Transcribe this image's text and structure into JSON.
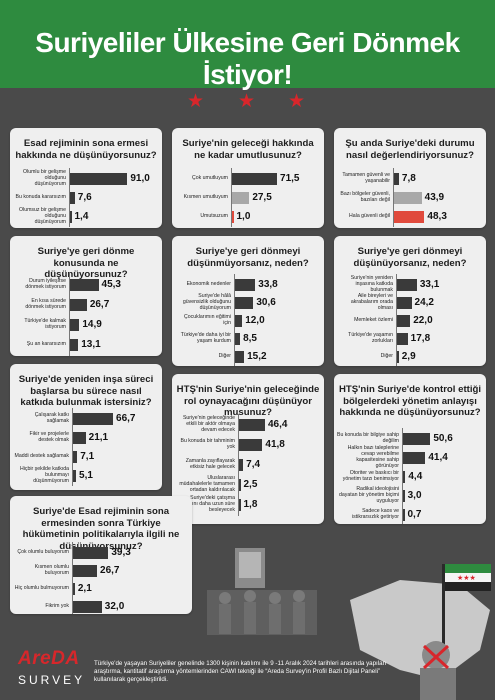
{
  "header": {
    "title": "Suriyeliler Ülkesine Geri Dönmek İstiyor!"
  },
  "colors": {
    "header_bg": "#2e8b3f",
    "star": "#d8262b",
    "bar_dark": "#3a3a3a",
    "bar_gray": "#a8a8a8",
    "bar_red": "#e04a3c",
    "bg": "#4a4a4a"
  },
  "icons": {
    "stars": [
      "star-icon",
      "star-icon",
      "star-icon"
    ],
    "logo": "areda-logo",
    "map": "syria-map",
    "flag": "syrian-opposition-flag"
  },
  "footer": {
    "logo_word": "AreDA",
    "logo_sub": "SURVEY",
    "text": "Türkiye'de yaşayan Suriyeliler genelinde 1300 kişinin katılımı ile 9 -11 Aralık 2024 tarihleri arasında yapılan araştırma, kantitatif araştırma yöntemlerinden CAWI tekniği ile “Areda Survey'in Profil Bazlı Dijital Paneli” kullanılarak gerçekleştirildi."
  },
  "chart_data": [
    {
      "type": "bar",
      "title": "Esad rejiminin sona ermesi hakkında ne düşünüyorsunuz?",
      "categories": [
        "Olumlu bir gelişme olduğunu düşünüyorum",
        "Bu konuda kararsızım",
        "Olumsuz bir gelişme olduğunu düşünüyorum"
      ],
      "values": [
        91.0,
        7.6,
        1.4
      ],
      "value_labels": [
        "91,0",
        "7,6",
        "1,4"
      ],
      "colors": [
        "#3a3a3a",
        "#3a3a3a",
        "#3a3a3a"
      ],
      "xlim": [
        0,
        100
      ]
    },
    {
      "type": "bar",
      "title": "Suriye'nin geleceği hakkında ne kadar umutlusunuz?",
      "categories": [
        "Çok umutluyum",
        "Kısmen umutluyum",
        "Umutsuzum"
      ],
      "values": [
        71.5,
        27.5,
        1.0
      ],
      "value_labels": [
        "71,5",
        "27,5",
        "1,0"
      ],
      "colors": [
        "#3a3a3a",
        "#a8a8a8",
        "#e04a3c"
      ],
      "xlim": [
        0,
        100
      ]
    },
    {
      "type": "bar",
      "title": "Şu anda Suriye'deki durumu nasıl değerlendiriyorsunuz?",
      "categories": [
        "Tamamen güvenli ve yaşanabilir",
        "Bazı bölgeler güvenli, bazıları değil",
        "Hala güvenli değil"
      ],
      "values": [
        7.8,
        43.9,
        48.3
      ],
      "value_labels": [
        "7,8",
        "43,9",
        "48,3"
      ],
      "colors": [
        "#3a3a3a",
        "#a8a8a8",
        "#e04a3c"
      ],
      "xlim": [
        0,
        100
      ]
    },
    {
      "type": "bar",
      "title": "Suriye'ye geri dönme konusunda ne düşünüyorsunuz?",
      "categories": [
        "Durum iyileşirse dönmek istiyorum",
        "En kısa sürede dönmek istiyorum",
        "Türkiye'de kalmak istiyorum",
        "Şu an kararsızım"
      ],
      "values": [
        45.3,
        26.7,
        14.9,
        13.1
      ],
      "value_labels": [
        "45,3",
        "26,7",
        "14,9",
        "13,1"
      ],
      "colors": [
        "#3a3a3a",
        "#3a3a3a",
        "#3a3a3a",
        "#3a3a3a"
      ],
      "xlim": [
        0,
        100
      ]
    },
    {
      "type": "bar",
      "title": "Suriye'ye geri dönmeyi düşünmüyorsanız, neden?",
      "categories": [
        "Ekonomik nedenler",
        "Suriye'de hâlâ güvensizlik olduğunu düşünüyorum",
        "Çocuklarımın eğitimi için",
        "Türkiye'de daha iyi bir yaşam kurdum",
        "Diğer"
      ],
      "values": [
        33.8,
        30.6,
        12.0,
        8.5,
        15.2
      ],
      "value_labels": [
        "33,8",
        "30,6",
        "12,0",
        "8,5",
        "15,2"
      ],
      "colors": [
        "#3a3a3a",
        "#3a3a3a",
        "#3a3a3a",
        "#3a3a3a",
        "#3a3a3a"
      ],
      "xlim": [
        0,
        100
      ]
    },
    {
      "type": "bar",
      "title": "Suriye'ye geri dönmeyi düşünüyorsanız, neden?",
      "categories": [
        "Suriye'nin yeniden inşasına katkıda bulunmak",
        "Aile bireyleri ve akrabalarım orada olması",
        "Memleket özlemi",
        "Türkiye'de yaşamın zorlukları",
        "Diğer"
      ],
      "values": [
        33.1,
        24.2,
        22.0,
        17.8,
        2.9
      ],
      "value_labels": [
        "33,1",
        "24,2",
        "22,0",
        "17,8",
        "2,9"
      ],
      "colors": [
        "#3a3a3a",
        "#3a3a3a",
        "#3a3a3a",
        "#3a3a3a",
        "#3a3a3a"
      ],
      "xlim": [
        0,
        100
      ]
    },
    {
      "type": "bar",
      "title": "Suriye'de yeniden inşa süreci başlarsa bu sürece nasıl katkıda bulunmak istersiniz?",
      "categories": [
        "Çalışarak katkı sağlamak",
        "Fikir ve projelerle destek olmak",
        "Maddi destek sağlamak",
        "Hiçbir şekilde katkıda bulunmayı düşünmüyorum"
      ],
      "values": [
        66.7,
        21.1,
        7.1,
        5.1
      ],
      "value_labels": [
        "66,7",
        "21,1",
        "7,1",
        "5,1"
      ],
      "colors": [
        "#3a3a3a",
        "#3a3a3a",
        "#3a3a3a",
        "#3a3a3a"
      ],
      "xlim": [
        0,
        100
      ]
    },
    {
      "type": "bar",
      "title": "HTŞ'nin Suriye'nin geleceğinde rol oynayacağını düşünüyor musunuz?",
      "categories": [
        "Suriye'nin geleceğinde etkili bir aktör olmaya devam edecek",
        "Bu konuda bir tahminim yok",
        "Zamanla zayıflayarak etkisiz hale gelecek",
        "Uluslararası müdahalelerle tamamen ortadan kaldırılacak",
        "Suriye'deki çatışma ortamını daha uzun süre besleyecek"
      ],
      "values": [
        46.4,
        41.8,
        7.4,
        2.5,
        1.8
      ],
      "value_labels": [
        "46,4",
        "41,8",
        "7,4",
        "2,5",
        "1,8"
      ],
      "colors": [
        "#3a3a3a",
        "#3a3a3a",
        "#3a3a3a",
        "#3a3a3a",
        "#3a3a3a"
      ],
      "xlim": [
        0,
        100
      ]
    },
    {
      "type": "bar",
      "title": "HTŞ'nin Suriye'de kontrol ettiği bölgelerdeki yönetim anlayışı hakkında ne düşünüyorsunuz?",
      "categories": [
        "Bu konuda bir bilgiye sahip değilim",
        "Halkın bazı taleplerine cevap verebilme kapasitesine sahip görünüyor",
        "Otoriter ve baskıcı bir yönetim tarzı benimsiyor",
        "Radikal ideolojisini dayatan bir yönetim biçimi uyguluyor",
        "Sadece kaos ve istikrarsızlık getiriyor"
      ],
      "values": [
        50.6,
        41.4,
        4.4,
        3.0,
        0.7
      ],
      "value_labels": [
        "50,6",
        "41,4",
        "4,4",
        "3,0",
        "0,7"
      ],
      "colors": [
        "#3a3a3a",
        "#3a3a3a",
        "#3a3a3a",
        "#3a3a3a",
        "#3a3a3a"
      ],
      "xlim": [
        0,
        100
      ]
    },
    {
      "type": "bar",
      "title": "Suriye'de Esad rejiminin sona ermesinden sonra Türkiye hükümetinin politikalarıyla ilgili ne düşünüyorsunuz?",
      "categories": [
        "Çok olumlu buluyorum",
        "Kısmen olumlu buluyorum",
        "Hiç olumlu bulmuyorum",
        "Fikrim yok"
      ],
      "values": [
        39.3,
        26.7,
        2.1,
        32.0
      ],
      "value_labels": [
        "39,3",
        "26,7",
        "2,1",
        "32,0"
      ],
      "colors": [
        "#3a3a3a",
        "#3a3a3a",
        "#3a3a3a",
        "#3a3a3a"
      ],
      "xlim": [
        0,
        100
      ]
    }
  ]
}
